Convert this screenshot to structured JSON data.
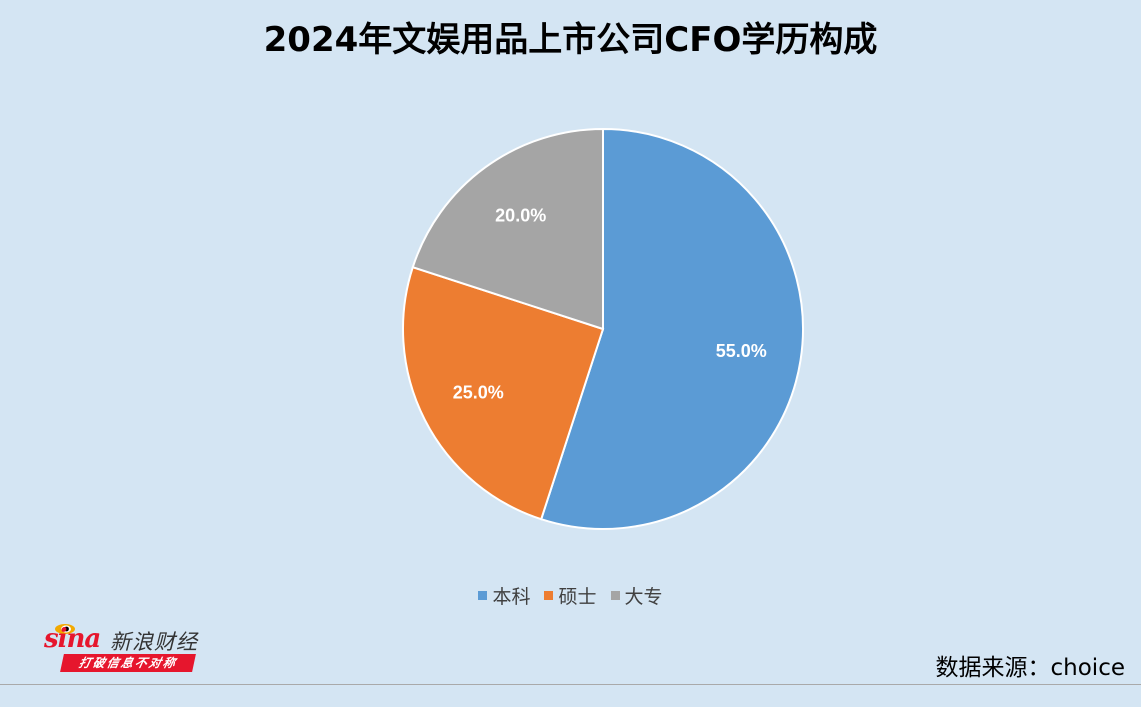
{
  "title": "2024年文娱用品上市公司CFO学历构成",
  "chart_data": {
    "type": "pie",
    "title": "2024年文娱用品上市公司CFO学历构成",
    "categories": [
      "本科",
      "硕士",
      "大专"
    ],
    "values": [
      55.0,
      25.0,
      20.0
    ],
    "labels": [
      "55.0%",
      "25.0%",
      "20.0%"
    ],
    "colors": [
      "#5b9bd5",
      "#ed7d31",
      "#a5a5a5"
    ],
    "start_angle": "12 o'clock",
    "direction": "clockwise",
    "legend_position": "bottom"
  },
  "legend": [
    {
      "label": "本科",
      "color": "#5b9bd5"
    },
    {
      "label": "硕士",
      "color": "#ed7d31"
    },
    {
      "label": "大专",
      "color": "#a5a5a5"
    }
  ],
  "watermark": {
    "brand": "sina",
    "name": "新浪财经",
    "slogan": "打破信息不对称"
  },
  "source": "数据来源：choice"
}
